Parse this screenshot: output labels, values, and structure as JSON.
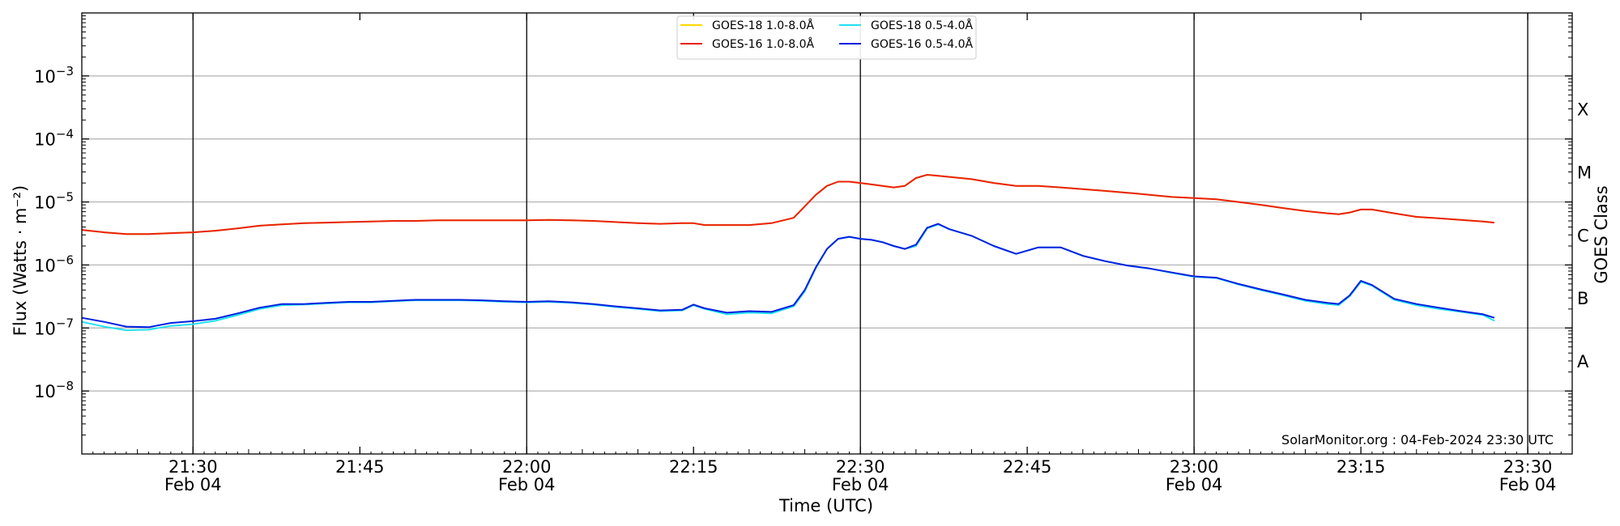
{
  "chart_data": {
    "type": "line",
    "ylabel": "Flux (Watts · m⁻²)",
    "ylabel_right": "GOES Class",
    "xlabel": "Time (UTC)",
    "y_scale": "log",
    "ylim": [
      1e-09,
      0.01
    ],
    "xlim": [
      "21:20",
      "23:34"
    ],
    "yticks": [
      {
        "value": 1e-08,
        "base": "10",
        "exp": "−8"
      },
      {
        "value": 1e-07,
        "base": "10",
        "exp": "−7"
      },
      {
        "value": 1e-06,
        "base": "10",
        "exp": "−6"
      },
      {
        "value": 1e-05,
        "base": "10",
        "exp": "−5"
      },
      {
        "value": 0.0001,
        "base": "10",
        "exp": "−4"
      },
      {
        "value": 0.001,
        "base": "10",
        "exp": "−3"
      }
    ],
    "xticks": [
      {
        "time": "21:30",
        "label": "21:30",
        "sub": "Feb 04",
        "major": true
      },
      {
        "time": "21:45",
        "label": "21:45",
        "sub": "",
        "major": false
      },
      {
        "time": "22:00",
        "label": "22:00",
        "sub": "Feb 04",
        "major": true
      },
      {
        "time": "22:15",
        "label": "22:15",
        "sub": "",
        "major": false
      },
      {
        "time": "22:30",
        "label": "22:30",
        "sub": "Feb 04",
        "major": true
      },
      {
        "time": "22:45",
        "label": "22:45",
        "sub": "",
        "major": false
      },
      {
        "time": "23:00",
        "label": "23:00",
        "sub": "Feb 04",
        "major": true
      },
      {
        "time": "23:15",
        "label": "23:15",
        "sub": "",
        "major": false
      },
      {
        "time": "23:30",
        "label": "23:30",
        "sub": "Feb 04",
        "major": true
      }
    ],
    "classes": [
      {
        "label": "A",
        "value": 3e-08
      },
      {
        "label": "B",
        "value": 3e-07
      },
      {
        "label": "C",
        "value": 3e-06
      },
      {
        "label": "M",
        "value": 3e-05
      },
      {
        "label": "X",
        "value": 0.0003
      }
    ],
    "grid": true,
    "legend_position": "top-center",
    "series": [
      {
        "name": "GOES-18 1.0-8.0Å",
        "color": "#FFD700",
        "times": [
          "21:20",
          "21:22",
          "21:24",
          "21:26",
          "21:28",
          "21:30",
          "21:32",
          "21:34",
          "21:36",
          "21:38",
          "21:40",
          "21:42",
          "21:44",
          "21:46",
          "21:48",
          "21:50",
          "21:52",
          "21:54",
          "21:56",
          "21:58",
          "22:00",
          "22:02",
          "22:04",
          "22:06",
          "22:08",
          "22:10",
          "22:12",
          "22:14",
          "22:15",
          "22:16",
          "22:18",
          "22:20",
          "22:22",
          "22:24",
          "22:25",
          "22:26",
          "22:27",
          "22:28",
          "22:29",
          "22:30",
          "22:31",
          "22:32",
          "22:33",
          "22:34",
          "22:35",
          "22:36",
          "22:37",
          "22:38",
          "22:40",
          "22:42",
          "22:44",
          "22:46",
          "22:48",
          "22:50",
          "22:52",
          "22:54",
          "22:56",
          "22:58",
          "23:00",
          "23:02",
          "23:04",
          "23:06",
          "23:08",
          "23:10",
          "23:12",
          "23:13",
          "23:14",
          "23:15",
          "23:16",
          "23:18",
          "23:20",
          "23:22",
          "23:24",
          "23:26",
          "23:27"
        ],
        "values": [
          3.6e-06,
          3.3e-06,
          3.1e-06,
          3.1e-06,
          3.2e-06,
          3.3e-06,
          3.5e-06,
          3.8e-06,
          4.2e-06,
          4.4e-06,
          4.6e-06,
          4.7e-06,
          4.8e-06,
          4.9e-06,
          5e-06,
          5e-06,
          5.1e-06,
          5.1e-06,
          5.1e-06,
          5.1e-06,
          5.1e-06,
          5.2e-06,
          5.1e-06,
          5e-06,
          4.8e-06,
          4.6e-06,
          4.5e-06,
          4.6e-06,
          4.6e-06,
          4.3e-06,
          4.3e-06,
          4.3e-06,
          4.6e-06,
          5.6e-06,
          8.5e-06,
          1.3e-05,
          1.8e-05,
          2.1e-05,
          2.1e-05,
          2e-05,
          1.9e-05,
          1.8e-05,
          1.7e-05,
          1.8e-05,
          2.4e-05,
          2.7e-05,
          2.6e-05,
          2.5e-05,
          2.3e-05,
          2e-05,
          1.8e-05,
          1.8e-05,
          1.7e-05,
          1.6e-05,
          1.5e-05,
          1.4e-05,
          1.3e-05,
          1.2e-05,
          1.15e-05,
          1.1e-05,
          1e-05,
          9e-06,
          8e-06,
          7.2e-06,
          6.6e-06,
          6.4e-06,
          6.8e-06,
          7.6e-06,
          7.6e-06,
          6.6e-06,
          5.8e-06,
          5.5e-06,
          5.2e-06,
          4.9e-06,
          4.7e-06
        ]
      },
      {
        "name": "GOES-16 1.0-8.0Å",
        "color": "#E8220C",
        "times": [
          "21:20",
          "21:22",
          "21:24",
          "21:26",
          "21:28",
          "21:30",
          "21:32",
          "21:34",
          "21:36",
          "21:38",
          "21:40",
          "21:42",
          "21:44",
          "21:46",
          "21:48",
          "21:50",
          "21:52",
          "21:54",
          "21:56",
          "21:58",
          "22:00",
          "22:02",
          "22:04",
          "22:06",
          "22:08",
          "22:10",
          "22:12",
          "22:14",
          "22:15",
          "22:16",
          "22:18",
          "22:20",
          "22:22",
          "22:24",
          "22:25",
          "22:26",
          "22:27",
          "22:28",
          "22:29",
          "22:30",
          "22:31",
          "22:32",
          "22:33",
          "22:34",
          "22:35",
          "22:36",
          "22:37",
          "22:38",
          "22:40",
          "22:42",
          "22:44",
          "22:46",
          "22:48",
          "22:50",
          "22:52",
          "22:54",
          "22:56",
          "22:58",
          "23:00",
          "23:02",
          "23:04",
          "23:06",
          "23:08",
          "23:10",
          "23:12",
          "23:13",
          "23:14",
          "23:15",
          "23:16",
          "23:18",
          "23:20",
          "23:22",
          "23:24",
          "23:26",
          "23:27"
        ],
        "values": [
          3.6e-06,
          3.3e-06,
          3.1e-06,
          3.1e-06,
          3.2e-06,
          3.3e-06,
          3.5e-06,
          3.8e-06,
          4.2e-06,
          4.4e-06,
          4.6e-06,
          4.7e-06,
          4.8e-06,
          4.9e-06,
          5e-06,
          5e-06,
          5.1e-06,
          5.1e-06,
          5.1e-06,
          5.1e-06,
          5.1e-06,
          5.2e-06,
          5.1e-06,
          5e-06,
          4.8e-06,
          4.6e-06,
          4.5e-06,
          4.6e-06,
          4.6e-06,
          4.3e-06,
          4.3e-06,
          4.3e-06,
          4.6e-06,
          5.6e-06,
          8.5e-06,
          1.3e-05,
          1.8e-05,
          2.1e-05,
          2.1e-05,
          2e-05,
          1.9e-05,
          1.8e-05,
          1.7e-05,
          1.8e-05,
          2.4e-05,
          2.7e-05,
          2.6e-05,
          2.5e-05,
          2.3e-05,
          2e-05,
          1.8e-05,
          1.8e-05,
          1.7e-05,
          1.6e-05,
          1.5e-05,
          1.4e-05,
          1.3e-05,
          1.2e-05,
          1.15e-05,
          1.1e-05,
          1e-05,
          9e-06,
          8e-06,
          7.2e-06,
          6.6e-06,
          6.4e-06,
          6.8e-06,
          7.6e-06,
          7.6e-06,
          6.6e-06,
          5.8e-06,
          5.5e-06,
          5.2e-06,
          4.9e-06,
          4.7e-06
        ]
      },
      {
        "name": "GOES-18 0.5-4.0Å",
        "color": "#22E0F0",
        "times": [
          "21:20",
          "21:22",
          "21:24",
          "21:26",
          "21:28",
          "21:30",
          "21:32",
          "21:34",
          "21:36",
          "21:38",
          "21:40",
          "21:42",
          "21:44",
          "21:46",
          "21:48",
          "21:50",
          "21:52",
          "21:54",
          "21:56",
          "21:58",
          "22:00",
          "22:02",
          "22:04",
          "22:06",
          "22:08",
          "22:10",
          "22:12",
          "22:14",
          "22:15",
          "22:16",
          "22:18",
          "22:20",
          "22:22",
          "22:24",
          "22:25",
          "22:26",
          "22:27",
          "22:28",
          "22:29",
          "22:30",
          "22:31",
          "22:32",
          "22:33",
          "22:34",
          "22:35",
          "22:36",
          "22:37",
          "22:38",
          "22:40",
          "22:42",
          "22:44",
          "22:46",
          "22:48",
          "22:50",
          "22:52",
          "22:54",
          "22:56",
          "22:58",
          "23:00",
          "23:02",
          "23:04",
          "23:06",
          "23:08",
          "23:10",
          "23:12",
          "23:13",
          "23:14",
          "23:15",
          "23:16",
          "23:18",
          "23:20",
          "23:22",
          "23:24",
          "23:26",
          "23:27"
        ],
        "values": [
          1.25e-07,
          1.05e-07,
          9.2e-08,
          9.4e-08,
          1.08e-07,
          1.15e-07,
          1.3e-07,
          1.6e-07,
          2e-07,
          2.3e-07,
          2.35e-07,
          2.45e-07,
          2.55e-07,
          2.55e-07,
          2.65e-07,
          2.75e-07,
          2.75e-07,
          2.75e-07,
          2.7e-07,
          2.6e-07,
          2.55e-07,
          2.6e-07,
          2.5e-07,
          2.35e-07,
          2.15e-07,
          2e-07,
          1.85e-07,
          1.9e-07,
          2.3e-07,
          2e-07,
          1.65e-07,
          1.75e-07,
          1.7e-07,
          2.2e-07,
          3.8e-07,
          9e-07,
          1.8e-06,
          2.6e-06,
          2.8e-06,
          2.6e-06,
          2.5e-06,
          2.3e-06,
          2e-06,
          1.8e-06,
          2e-06,
          3.8e-06,
          4.4e-06,
          3.7e-06,
          2.9e-06,
          2e-06,
          1.5e-06,
          1.9e-06,
          1.9e-06,
          1.4e-06,
          1.15e-06,
          9.8e-07,
          8.8e-07,
          7.5e-07,
          6.5e-07,
          6.2e-07,
          4.9e-07,
          4e-07,
          3.3e-07,
          2.7e-07,
          2.4e-07,
          2.3e-07,
          3.2e-07,
          5.4e-07,
          4.7e-07,
          2.8e-07,
          2.3e-07,
          2e-07,
          1.8e-07,
          1.6e-07,
          1.3e-07
        ]
      },
      {
        "name": "GOES-16 0.5-4.0Å",
        "color": "#0020E0",
        "times": [
          "21:20",
          "21:22",
          "21:24",
          "21:26",
          "21:28",
          "21:30",
          "21:32",
          "21:34",
          "21:36",
          "21:38",
          "21:40",
          "21:42",
          "21:44",
          "21:46",
          "21:48",
          "21:50",
          "21:52",
          "21:54",
          "21:56",
          "21:58",
          "22:00",
          "22:02",
          "22:04",
          "22:06",
          "22:08",
          "22:10",
          "22:12",
          "22:14",
          "22:15",
          "22:16",
          "22:18",
          "22:20",
          "22:22",
          "22:24",
          "22:25",
          "22:26",
          "22:27",
          "22:28",
          "22:29",
          "22:30",
          "22:31",
          "22:32",
          "22:33",
          "22:34",
          "22:35",
          "22:36",
          "22:37",
          "22:38",
          "22:40",
          "22:42",
          "22:44",
          "22:46",
          "22:48",
          "22:50",
          "22:52",
          "22:54",
          "22:56",
          "22:58",
          "23:00",
          "23:02",
          "23:04",
          "23:06",
          "23:08",
          "23:10",
          "23:12",
          "23:13",
          "23:14",
          "23:15",
          "23:16",
          "23:18",
          "23:20",
          "23:22",
          "23:24",
          "23:26",
          "23:27"
        ],
        "values": [
          1.45e-07,
          1.25e-07,
          1.05e-07,
          1.03e-07,
          1.2e-07,
          1.28e-07,
          1.4e-07,
          1.7e-07,
          2.1e-07,
          2.4e-07,
          2.4e-07,
          2.5e-07,
          2.6e-07,
          2.6e-07,
          2.7e-07,
          2.8e-07,
          2.8e-07,
          2.8e-07,
          2.75e-07,
          2.65e-07,
          2.6e-07,
          2.65e-07,
          2.55e-07,
          2.4e-07,
          2.2e-07,
          2.05e-07,
          1.9e-07,
          1.95e-07,
          2.35e-07,
          2.05e-07,
          1.75e-07,
          1.85e-07,
          1.8e-07,
          2.3e-07,
          4e-07,
          9.2e-07,
          1.8e-06,
          2.6e-06,
          2.8e-06,
          2.6e-06,
          2.5e-06,
          2.3e-06,
          2e-06,
          1.8e-06,
          2.1e-06,
          3.9e-06,
          4.5e-06,
          3.7e-06,
          2.9e-06,
          2e-06,
          1.5e-06,
          1.9e-06,
          1.9e-06,
          1.4e-06,
          1.15e-06,
          9.8e-07,
          8.8e-07,
          7.6e-07,
          6.6e-07,
          6.3e-07,
          5e-07,
          4.1e-07,
          3.4e-07,
          2.8e-07,
          2.5e-07,
          2.4e-07,
          3.3e-07,
          5.6e-07,
          4.8e-07,
          2.9e-07,
          2.4e-07,
          2.1e-07,
          1.85e-07,
          1.65e-07,
          1.45e-07
        ]
      }
    ],
    "annotation": "SolarMonitor.org : 04-Feb-2024 23:30 UTC"
  }
}
